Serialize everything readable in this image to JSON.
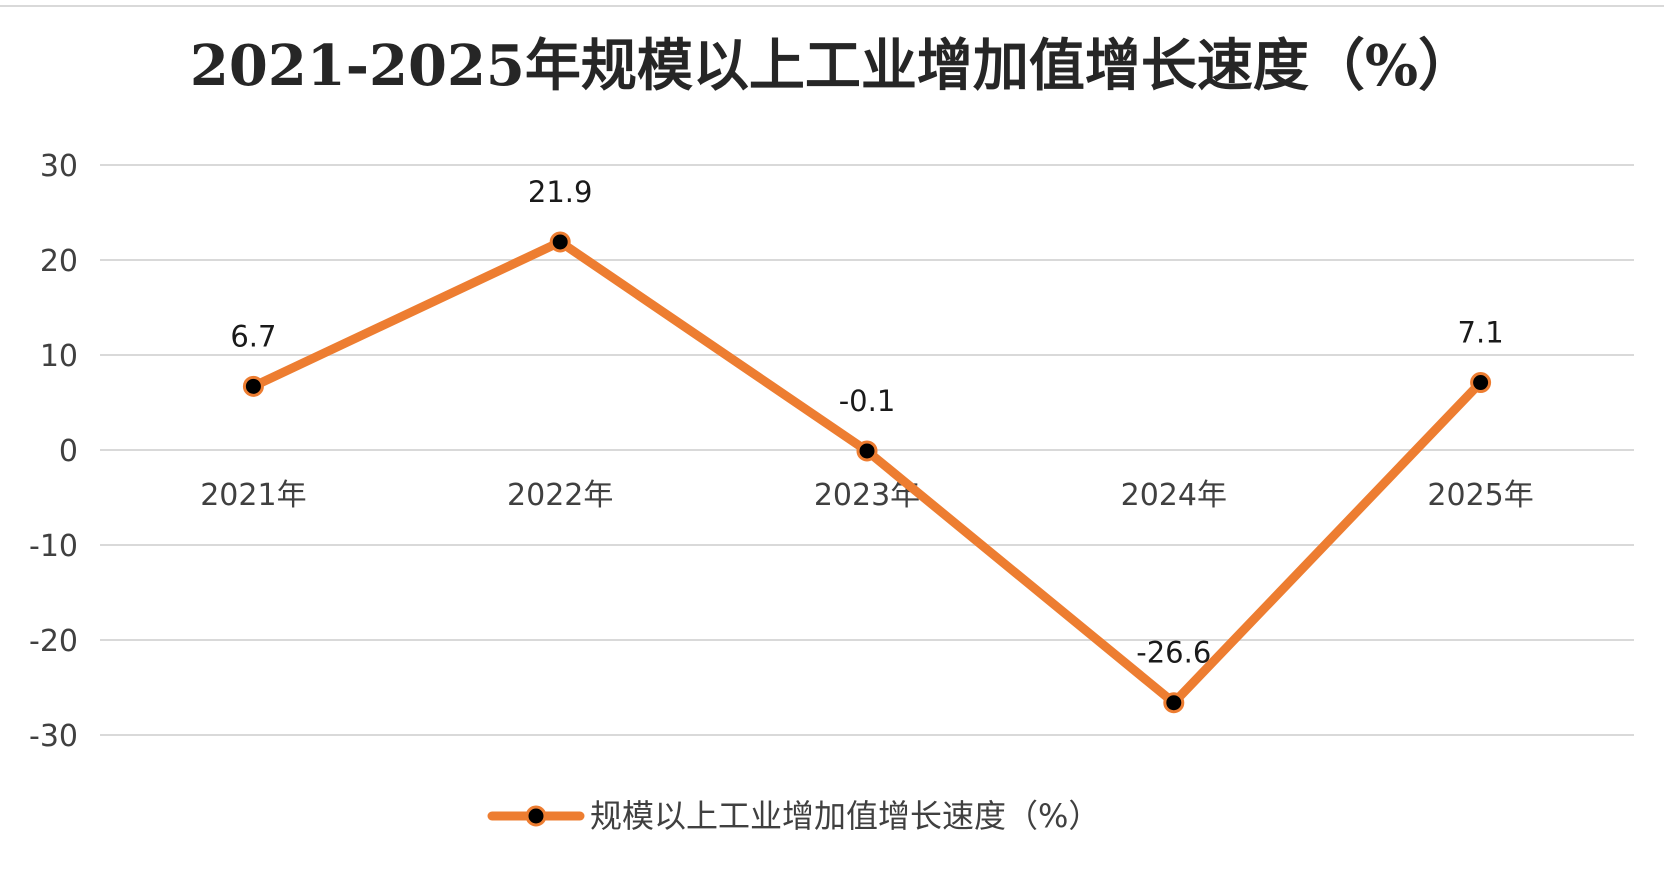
{
  "chart_data": {
    "type": "line",
    "title": "2021-2025年规模以上工业增加值增长速度（%）",
    "categories": [
      "2021年",
      "2022年",
      "2023年",
      "2024年",
      "2025年"
    ],
    "series": [
      {
        "name": "规模以上工业增加值增长速度（%）",
        "values": [
          6.7,
          21.9,
          -0.1,
          -26.6,
          7.1
        ],
        "color": "#ED7D31",
        "marker_color": "#000000"
      }
    ],
    "y_ticks": [
      30,
      20,
      10,
      0,
      -10,
      -20,
      -30
    ],
    "ylim": [
      -30,
      30
    ],
    "grid": true,
    "legend_position": "bottom",
    "data_labels": [
      "6.7",
      "21.9",
      "-0.1",
      "-26.6",
      "7.1"
    ]
  }
}
